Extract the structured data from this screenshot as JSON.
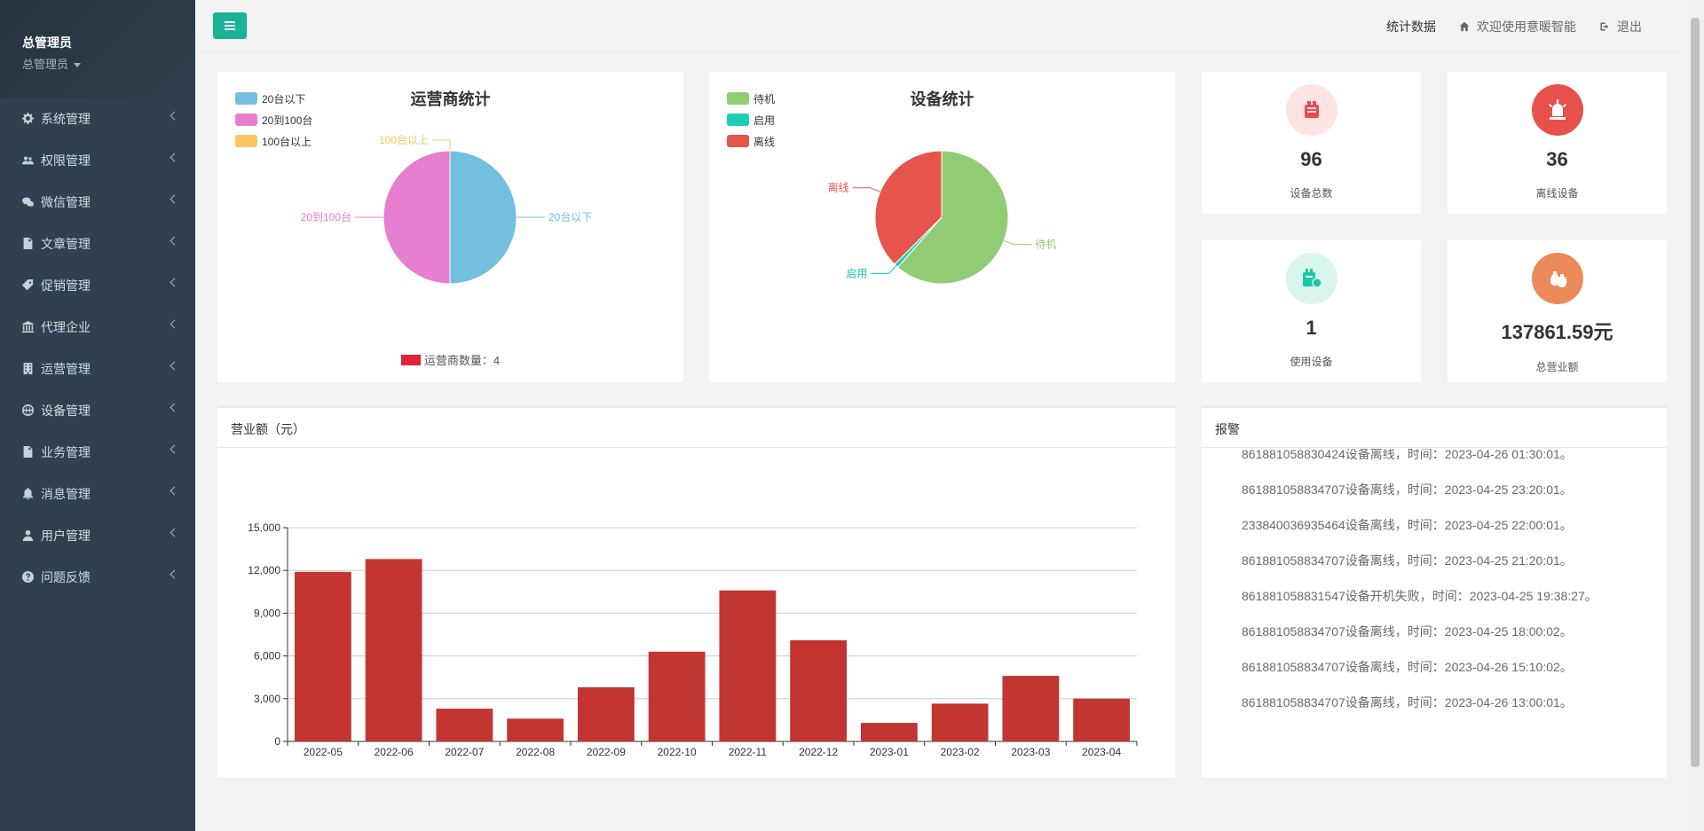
{
  "sidebar": {
    "user_name": "总管理员",
    "user_role": "总管理员",
    "items": [
      {
        "label": "系统管理",
        "icon": "gear-icon"
      },
      {
        "label": "权限管理",
        "icon": "users-icon"
      },
      {
        "label": "微信管理",
        "icon": "wechat-icon"
      },
      {
        "label": "文章管理",
        "icon": "file-icon"
      },
      {
        "label": "促销管理",
        "icon": "tag-icon"
      },
      {
        "label": "代理企业",
        "icon": "bank-icon"
      },
      {
        "label": "运营管理",
        "icon": "building-icon"
      },
      {
        "label": "设备管理",
        "icon": "globe-icon"
      },
      {
        "label": "业务管理",
        "icon": "file-icon"
      },
      {
        "label": "消息管理",
        "icon": "bell-icon"
      },
      {
        "label": "用户管理",
        "icon": "user-icon"
      },
      {
        "label": "问题反馈",
        "icon": "question-icon"
      }
    ]
  },
  "topbar": {
    "stats_label": "统计数据",
    "welcome_label": "欢迎使用意暖智能",
    "logout_label": "退出"
  },
  "operator_pie": {
    "title": "运营商统计",
    "legend": [
      {
        "label": "20台以下",
        "color": "#73bfe0"
      },
      {
        "label": "20到100台",
        "color": "#e87ecf"
      },
      {
        "label": "100台以上",
        "color": "#fcc55e"
      }
    ],
    "values": [
      50,
      50,
      0
    ],
    "slice_labels": [
      "20台以下",
      "20到100台",
      "100台以上"
    ],
    "footer_label": "运营商数量：4",
    "footer_color": "#e2223a"
  },
  "device_pie": {
    "title": "设备统计",
    "legend": [
      {
        "label": "待机",
        "color": "#91cc75"
      },
      {
        "label": "启用",
        "color": "#19d0b0"
      },
      {
        "label": "离线",
        "color": "#e5554b"
      }
    ],
    "values": [
      59,
      1,
      36
    ],
    "slice_labels": [
      "待机",
      "启用",
      "离线"
    ]
  },
  "stats": [
    {
      "value": "96",
      "label": "设备总数",
      "icon": "device-icon",
      "bg": "#fde4e4",
      "fg": "#f04a4a"
    },
    {
      "value": "36",
      "label": "离线设备",
      "icon": "alarm-light-icon",
      "bg": "#e8504a",
      "fg": "#ffffff"
    },
    {
      "value": "1",
      "label": "使用设备",
      "icon": "device-usage-icon",
      "bg": "#d8f6ee",
      "fg": "#1cc8a4"
    },
    {
      "value": "137861.59元",
      "label": "总营业额",
      "icon": "money-bags-icon",
      "bg": "#ec8a5a",
      "fg": "#ffffff"
    }
  ],
  "revenue": {
    "title": "营业额（元）"
  },
  "chart_data": {
    "type": "bar",
    "title": "营业额（元）",
    "categories": [
      "2022-05",
      "2022-06",
      "2022-07",
      "2022-08",
      "2022-09",
      "2022-10",
      "2022-11",
      "2022-12",
      "2023-01",
      "2023-02",
      "2023-03",
      "2023-04"
    ],
    "values": [
      11900,
      12800,
      2300,
      1600,
      3800,
      6300,
      10600,
      7100,
      1300,
      2650,
      4600,
      3000
    ],
    "ylim": [
      0,
      15000
    ],
    "yticks": [
      "0",
      "3,000",
      "6,000",
      "9,000",
      "12,000",
      "15,000"
    ],
    "ytick_values": [
      0,
      3000,
      6000,
      9000,
      12000,
      15000
    ],
    "grid": true,
    "bar_color": "#c23531"
  },
  "alarm": {
    "title": "报警",
    "items": [
      "861881058830424设备离线，时间：2023-04-26 01:30:01。",
      "861881058834707设备离线，时间：2023-04-25 23:20:01。",
      "233840036935464设备离线，时间：2023-04-25 22:00:01。",
      "861881058834707设备离线，时间：2023-04-25 21:20:01。",
      "861881058831547设备开机失败，时间：2023-04-25 19:38:27。",
      "861881058834707设备离线，时间：2023-04-25 18:00:02。",
      "861881058834707设备离线，时间：2023-04-26 15:10:02。",
      "861881058834707设备离线，时间：2023-04-26 13:00:01。"
    ]
  }
}
